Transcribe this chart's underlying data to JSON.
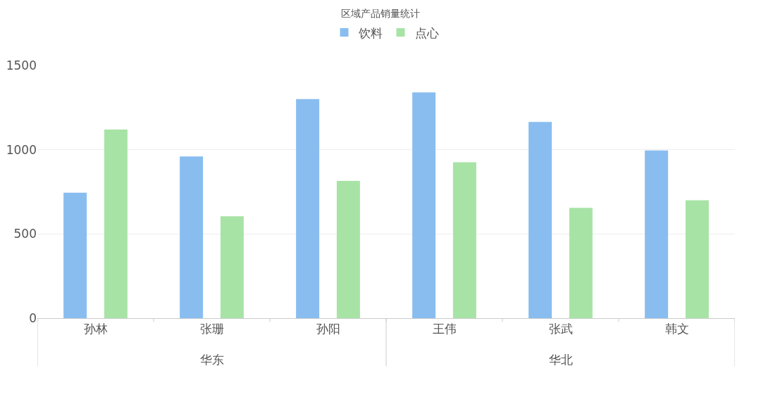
{
  "chart_data": {
    "type": "bar",
    "title": "区域产品销量统计",
    "categories": [
      "孙林",
      "张珊",
      "孙阳",
      "王伟",
      "张武",
      "韩文"
    ],
    "series": [
      {
        "name": "饮料",
        "color": "#89bdf0",
        "values": [
          745,
          960,
          1300,
          1340,
          1165,
          995
        ]
      },
      {
        "name": "点心",
        "color": "#a8e3a6",
        "values": [
          1120,
          605,
          815,
          925,
          655,
          700
        ]
      }
    ],
    "annotations": [
      "华东",
      "华北"
    ],
    "ylim": [
      0,
      1500
    ],
    "yticks": [
      0,
      500,
      1000,
      1500
    ],
    "grid": "y",
    "legend": "top"
  }
}
